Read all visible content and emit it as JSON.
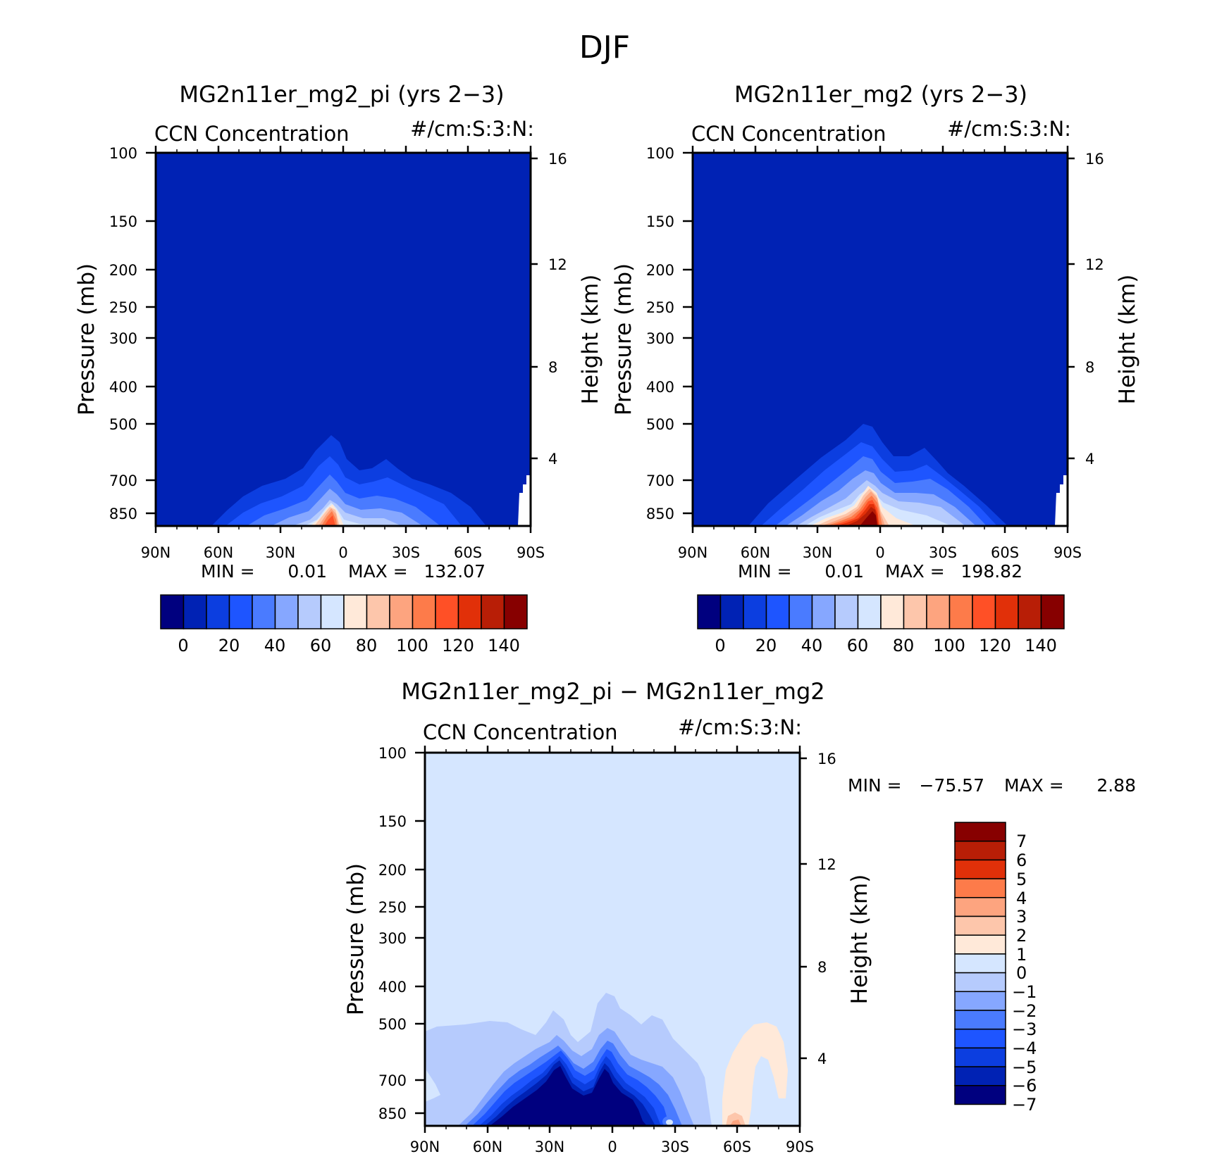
{
  "figure": {
    "title": "DJF"
  },
  "chart_data": [
    {
      "type": "heatmap",
      "panel": "top-left",
      "title": "MG2n11er_mg2_pi (yrs 2-3)",
      "field_label": "CCN Concentration",
      "units_label": "#/cm:S:3:N:",
      "xlabel": "",
      "ylabel": "Pressure (mb)",
      "y2label": "Height (km)",
      "x_ticks": [
        "90N",
        "60N",
        "30N",
        "0",
        "30S",
        "60S",
        "90S"
      ],
      "y_ticks": [
        "100",
        "150",
        "200",
        "250",
        "300",
        "400",
        "500",
        "700",
        "850"
      ],
      "y_tick_values": [
        100,
        150,
        200,
        250,
        300,
        400,
        500,
        700,
        850
      ],
      "y2_ticks": [
        "16",
        "12",
        "8",
        "4"
      ],
      "ylim": [
        1000,
        100
      ],
      "xlim": [
        90,
        -90
      ],
      "min_label": "MIN =",
      "min_value": "0.01",
      "max_label": "MAX =",
      "max_value": "132.07",
      "min": 0.01,
      "max": 132.07,
      "colorbar_ticks": [
        "0",
        "20",
        "40",
        "60",
        "80",
        "100",
        "120",
        "140"
      ],
      "colorbar_orientation": "horizontal",
      "colorbar_colors": [
        "#00007f",
        "#0022b4",
        "#0c3ee0",
        "#1e55ff",
        "#4a7bff",
        "#86a7ff",
        "#b6cbfd",
        "#d5e6ff",
        "#ffe9d9",
        "#fdc6ab",
        "#fda47f",
        "#fd7b4a",
        "#ff5026",
        "#e13009",
        "#b81e06",
        "#870000"
      ],
      "annotations": [
        "Maximum ~132 near the equator (5N) close to the surface; background field ~0-10"
      ]
    },
    {
      "type": "heatmap",
      "panel": "top-right",
      "title": "MG2n11er_mg2 (yrs 2-3)",
      "field_label": "CCN Concentration",
      "units_label": "#/cm:S:3:N:",
      "xlabel": "",
      "ylabel": "Pressure (mb)",
      "y2label": "Height (km)",
      "x_ticks": [
        "90N",
        "60N",
        "30N",
        "0",
        "30S",
        "60S",
        "90S"
      ],
      "y_ticks": [
        "100",
        "150",
        "200",
        "250",
        "300",
        "400",
        "500",
        "700",
        "850"
      ],
      "y_tick_values": [
        100,
        150,
        200,
        250,
        300,
        400,
        500,
        700,
        850
      ],
      "y2_ticks": [
        "16",
        "12",
        "8",
        "4"
      ],
      "ylim": [
        1000,
        100
      ],
      "xlim": [
        90,
        -90
      ],
      "min_label": "MIN =",
      "min_value": "0.01",
      "max_label": "MAX =",
      "max_value": "198.82",
      "min": 0.01,
      "max": 198.82,
      "colorbar_ticks": [
        "0",
        "20",
        "40",
        "60",
        "80",
        "100",
        "120",
        "140"
      ],
      "colorbar_orientation": "horizontal",
      "colorbar_colors": [
        "#00007f",
        "#0022b4",
        "#0c3ee0",
        "#1e55ff",
        "#4a7bff",
        "#86a7ff",
        "#b6cbfd",
        "#d5e6ff",
        "#ffe9d9",
        "#fdc6ab",
        "#fda47f",
        "#fd7b4a",
        "#ff5026",
        "#e13009",
        "#b81e06",
        "#870000"
      ],
      "annotations": [
        "Maximum ~199 near the equator (5N) close to the surface; background field ~0-10"
      ]
    },
    {
      "type": "heatmap",
      "panel": "bottom",
      "title": "MG2n11er_mg2_pi - MG2n11er_mg2",
      "field_label": "CCN Concentration",
      "units_label": "#/cm:S:3:N:",
      "xlabel": "",
      "ylabel": "Pressure (mb)",
      "y2label": "Height (km)",
      "x_ticks": [
        "90N",
        "60N",
        "30N",
        "0",
        "30S",
        "60S",
        "90S"
      ],
      "y_ticks": [
        "100",
        "150",
        "200",
        "250",
        "300",
        "400",
        "500",
        "700",
        "850"
      ],
      "y_tick_values": [
        100,
        150,
        200,
        250,
        300,
        400,
        500,
        700,
        850
      ],
      "y2_ticks": [
        "16",
        "12",
        "8",
        "4"
      ],
      "ylim": [
        1000,
        100
      ],
      "xlim": [
        90,
        -90
      ],
      "min_label": "MIN =",
      "min_value": "-75.57",
      "max_label": "MAX =",
      "max_value": "2.88",
      "min": -75.57,
      "max": 2.88,
      "colorbar_ticks": [
        "7",
        "6",
        "5",
        "4",
        "3",
        "2",
        "1",
        "0",
        "-1",
        "-2",
        "-3",
        "-4",
        "-5",
        "-6",
        "-7"
      ],
      "colorbar_orientation": "vertical",
      "colorbar_colors": [
        "#870000",
        "#b81e06",
        "#e13009",
        "#fd7b4a",
        "#fda47f",
        "#fdc6ab",
        "#ffe9d9",
        "#d5e6ff",
        "#b6cbfd",
        "#86a7ff",
        "#4a7bff",
        "#1e55ff",
        "#0c3ee0",
        "#0022b4",
        "#00007f"
      ],
      "annotations": [
        "Strong negative difference (below -7) from 50N to 20S below ~600 mb; small positive region 50S-80S"
      ]
    }
  ]
}
